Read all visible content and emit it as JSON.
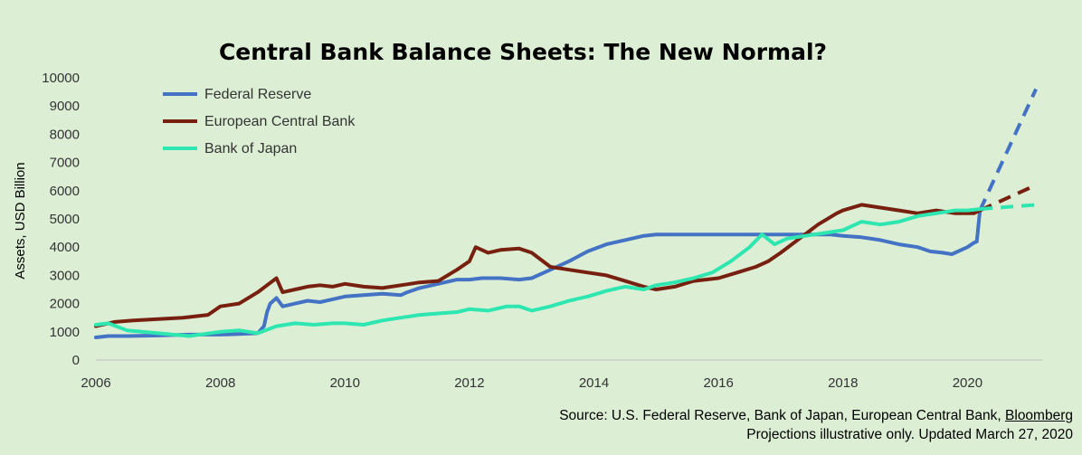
{
  "chart_data": {
    "type": "line",
    "title": "Central Bank Balance Sheets: The New Normal?",
    "ylabel": "Assets, USD Billion",
    "xlabel": "",
    "xlim": [
      2006,
      2021.2
    ],
    "ylim": [
      0,
      10000
    ],
    "x_ticks": [
      "2006",
      "2008",
      "2010",
      "2012",
      "2014",
      "2016",
      "2018",
      "2020"
    ],
    "y_ticks": [
      "0",
      "1000",
      "2000",
      "3000",
      "4000",
      "5000",
      "6000",
      "7000",
      "8000",
      "9000",
      "10000"
    ],
    "grid": false,
    "legend_position": "top-left",
    "series": [
      {
        "name": "Federal Reserve",
        "color": "#4472c4",
        "x": [
          2006,
          2006.2,
          2006.5,
          2007,
          2007.5,
          2008,
          2008.3,
          2008.6,
          2008.7,
          2008.75,
          2008.8,
          2008.9,
          2009.0,
          2009.1,
          2009.2,
          2009.4,
          2009.6,
          2009.8,
          2010,
          2010.3,
          2010.6,
          2010.9,
          2011,
          2011.2,
          2011.4,
          2011.6,
          2011.8,
          2012,
          2012.2,
          2012.5,
          2012.8,
          2013,
          2013.3,
          2013.6,
          2013.9,
          2014.2,
          2014.5,
          2014.8,
          2015,
          2015.5,
          2016,
          2016.5,
          2017,
          2017.5,
          2017.8,
          2018,
          2018.3,
          2018.6,
          2018.9,
          2019.2,
          2019.4,
          2019.6,
          2019.75,
          2019.9,
          2020.0,
          2020.1,
          2020.15,
          2020.2
        ],
        "values": [
          800,
          850,
          850,
          870,
          900,
          900,
          920,
          950,
          1200,
          1700,
          2000,
          2200,
          1900,
          1950,
          2000,
          2100,
          2050,
          2150,
          2250,
          2300,
          2350,
          2300,
          2400,
          2550,
          2650,
          2750,
          2850,
          2850,
          2900,
          2900,
          2850,
          2900,
          3200,
          3500,
          3850,
          4100,
          4250,
          4400,
          4450,
          4450,
          4450,
          4450,
          4450,
          4450,
          4450,
          4400,
          4350,
          4250,
          4100,
          4000,
          3850,
          3800,
          3750,
          3900,
          4000,
          4150,
          4200,
          5300
        ],
        "projection": {
          "x": [
            2020.2,
            2021.1
          ],
          "values": [
            5300,
            9600
          ]
        }
      },
      {
        "name": "European Central Bank",
        "color": "#782010",
        "x": [
          2006,
          2006.3,
          2006.6,
          2007,
          2007.4,
          2007.8,
          2008,
          2008.3,
          2008.6,
          2008.75,
          2008.9,
          2009.0,
          2009.2,
          2009.4,
          2009.6,
          2009.8,
          2010,
          2010.3,
          2010.6,
          2010.9,
          2011.2,
          2011.5,
          2011.8,
          2012.0,
          2012.1,
          2012.3,
          2012.5,
          2012.8,
          2013.0,
          2013.3,
          2013.6,
          2013.9,
          2014.2,
          2014.5,
          2014.8,
          2015.0,
          2015.3,
          2015.6,
          2016,
          2016.3,
          2016.6,
          2016.8,
          2017,
          2017.3,
          2017.6,
          2017.9,
          2018,
          2018.3,
          2018.6,
          2018.9,
          2019.2,
          2019.5,
          2019.8,
          2020.0,
          2020.1,
          2020.2
        ],
        "values": [
          1200,
          1350,
          1400,
          1450,
          1500,
          1600,
          1900,
          2000,
          2400,
          2650,
          2900,
          2400,
          2500,
          2600,
          2650,
          2600,
          2700,
          2600,
          2550,
          2650,
          2750,
          2800,
          3200,
          3500,
          4000,
          3800,
          3900,
          3950,
          3800,
          3300,
          3200,
          3100,
          3000,
          2800,
          2600,
          2500,
          2600,
          2800,
          2900,
          3100,
          3300,
          3500,
          3800,
          4300,
          4800,
          5200,
          5300,
          5500,
          5400,
          5300,
          5200,
          5300,
          5200,
          5200,
          5200,
          5300
        ],
        "projection": {
          "x": [
            2020.2,
            2021.1
          ],
          "values": [
            5300,
            6200
          ]
        }
      },
      {
        "name": "Bank of Japan",
        "color": "#2ee6b0",
        "x": [
          2006,
          2006.2,
          2006.5,
          2007,
          2007.5,
          2008,
          2008.3,
          2008.6,
          2008.9,
          2009.2,
          2009.5,
          2009.8,
          2010,
          2010.3,
          2010.6,
          2010.9,
          2011.2,
          2011.5,
          2011.8,
          2012,
          2012.3,
          2012.6,
          2012.8,
          2013,
          2013.3,
          2013.6,
          2013.9,
          2014.2,
          2014.5,
          2014.8,
          2015,
          2015.3,
          2015.6,
          2015.9,
          2016.2,
          2016.5,
          2016.7,
          2016.9,
          2017.1,
          2017.4,
          2017.7,
          2018,
          2018.3,
          2018.6,
          2018.9,
          2019.2,
          2019.5,
          2019.8,
          2020.0,
          2020.2
        ],
        "values": [
          1250,
          1300,
          1050,
          950,
          850,
          1000,
          1050,
          950,
          1200,
          1300,
          1250,
          1300,
          1300,
          1250,
          1400,
          1500,
          1600,
          1650,
          1700,
          1800,
          1750,
          1900,
          1900,
          1750,
          1900,
          2100,
          2250,
          2450,
          2600,
          2500,
          2650,
          2750,
          2900,
          3100,
          3500,
          4000,
          4450,
          4100,
          4300,
          4400,
          4500,
          4600,
          4900,
          4800,
          4900,
          5100,
          5200,
          5300,
          5300,
          5350
        ],
        "projection": {
          "x": [
            2020.2,
            2021.1
          ],
          "values": [
            5350,
            5500
          ]
        }
      }
    ]
  },
  "source": {
    "line1_prefix": "Source: U.S. Federal Reserve, Bank of Japan, European Central Bank, ",
    "line1_link": "Bloomberg",
    "line2": "Projections illustrative only. Updated March 27, 2020"
  }
}
